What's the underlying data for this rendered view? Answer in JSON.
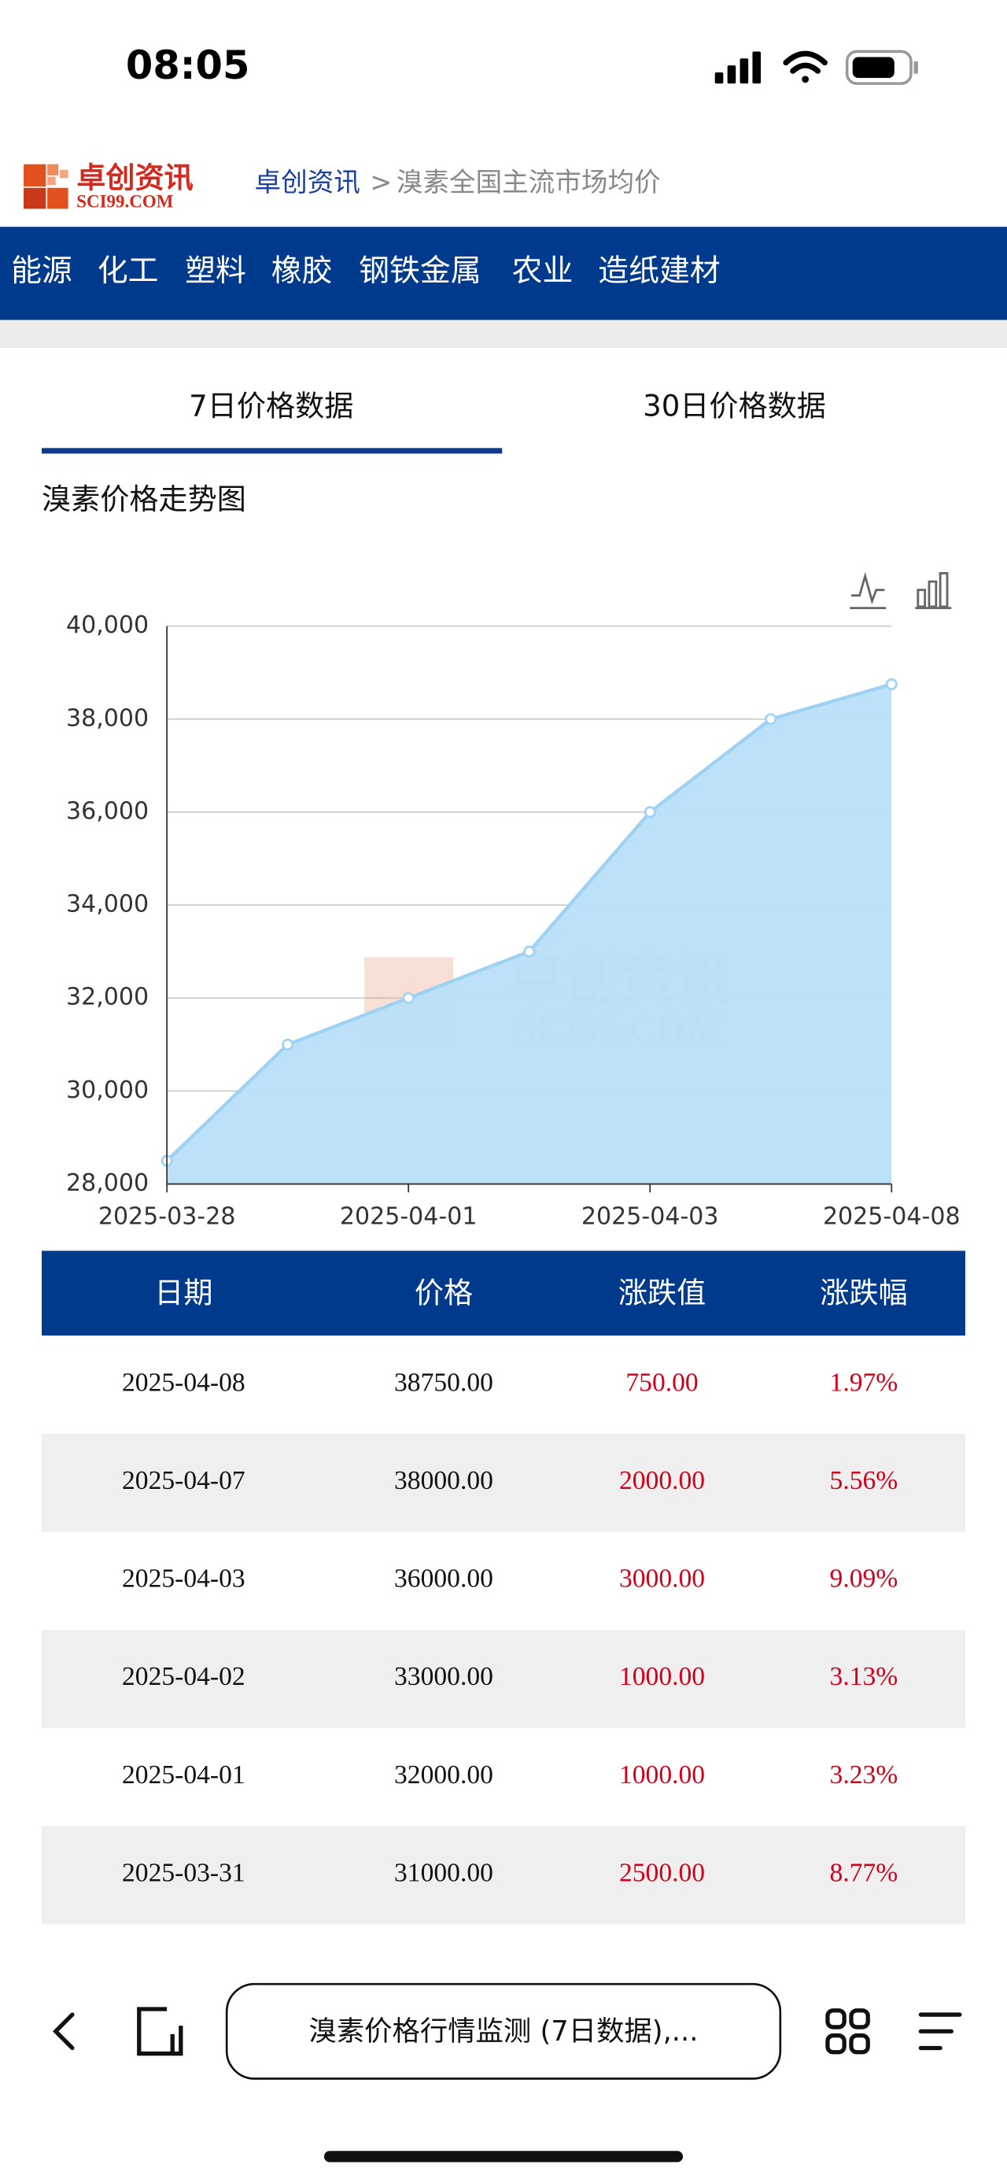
{
  "status_bar": {
    "time": "08:05"
  },
  "header": {
    "logo_text": "卓创资讯",
    "logo_sub": "SCI99.COM",
    "breadcrumb_home": "卓创资讯",
    "separator": ">",
    "breadcrumb_current": "溴素全国主流市场均价"
  },
  "nav": [
    "能源",
    "化工",
    "塑料",
    "橡胶",
    "钢铁金属",
    "农业",
    "造纸建材"
  ],
  "tabs": [
    "7日价格数据",
    "30日价格数据"
  ],
  "section_title": "溴素价格走势图",
  "chart_data": {
    "type": "area",
    "categories": [
      "2025-03-28",
      null,
      "2025-04-01",
      null,
      "2025-04-03",
      null,
      "2025-04-08"
    ],
    "values": [
      28500,
      31000,
      32000,
      33000,
      36000,
      38000,
      38750
    ],
    "color": "#b8dff8",
    "line_color": "#9fd2f2",
    "ylim": [
      28000,
      40000
    ],
    "yticks": [
      {
        "value": 28000,
        "label": "28,000"
      },
      {
        "value": 30000,
        "label": "30,000"
      },
      {
        "value": 32000,
        "label": "32,000"
      },
      {
        "value": 34000,
        "label": "34,000"
      },
      {
        "value": 36000,
        "label": "36,000"
      },
      {
        "value": 38000,
        "label": "38,000"
      },
      {
        "value": 40000,
        "label": "40,000"
      }
    ],
    "grid": true,
    "watermark": [
      "卓创资讯",
      "SCI99.COM"
    ]
  },
  "table": {
    "header": [
      "日期",
      "价格",
      "涨跌值",
      "涨跌幅"
    ],
    "rows": [
      [
        "2025-04-08",
        "38750.00",
        "750.00",
        "1.97%"
      ],
      [
        "2025-04-07",
        "38000.00",
        "2000.00",
        "5.56%"
      ],
      [
        "2025-04-03",
        "36000.00",
        "3000.00",
        "9.09%"
      ],
      [
        "2025-04-02",
        "33000.00",
        "1000.00",
        "3.13%"
      ],
      [
        "2025-04-01",
        "32000.00",
        "1000.00",
        "3.23%"
      ],
      [
        "2025-03-31",
        "31000.00",
        "2500.00",
        "8.77%"
      ]
    ]
  },
  "bottom_bar": {
    "address": "溴素价格行情监测 (7日数据),..."
  }
}
